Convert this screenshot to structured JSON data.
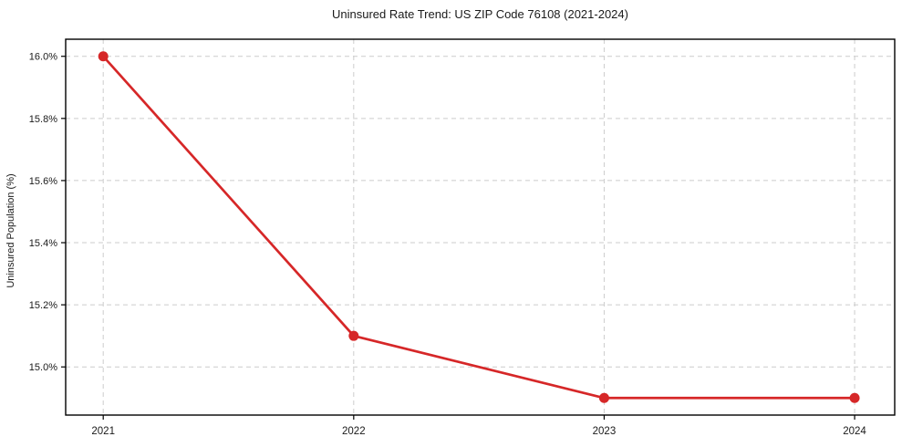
{
  "figure": {
    "background": "#ffffff"
  },
  "chart_data": {
    "type": "line",
    "title": "Uninsured Rate Trend: US ZIP Code 76108 (2021-2024)",
    "xlabel": "",
    "ylabel": "Uninsured Population (%)",
    "x": [
      2021,
      2022,
      2023,
      2024
    ],
    "series": [
      {
        "name": "Uninsured rate",
        "values": [
          16.0,
          15.1,
          14.9,
          14.9
        ],
        "color": "#d62728",
        "marker": "circle"
      }
    ],
    "xticks": [
      2021,
      2022,
      2023,
      2024
    ],
    "xtick_labels": [
      "2021",
      "2022",
      "2023",
      "2024"
    ],
    "yticks": [
      15.0,
      15.2,
      15.4,
      15.6,
      15.8,
      16.0
    ],
    "ytick_labels": [
      "15.0%",
      "15.2%",
      "15.4%",
      "15.6%",
      "15.8%",
      "16.0%"
    ],
    "xlim": [
      2020.85,
      2024.16
    ],
    "ylim": [
      14.845,
      16.055
    ],
    "grid": true,
    "grid_color": "#cccccc",
    "spine_color": "#000000",
    "tick_color": "#000000",
    "text_color": "#1a1a1a",
    "legend": "none"
  }
}
